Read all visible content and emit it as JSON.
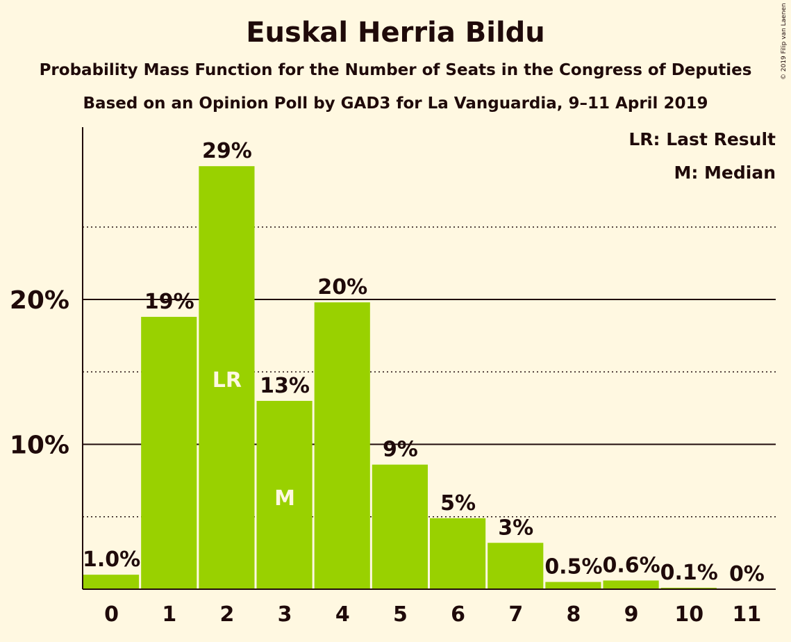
{
  "title": "Euskal Herria Bildu",
  "subtitle": "Probability Mass Function for the Number of Seats in the Congress of Deputies",
  "subtitle2": "Based on an Opinion Poll by GAD3 for La Vanguardia, 9–11 April 2019",
  "copyright": "© 2019 Filip van Laenen",
  "legend": {
    "lr": "LR: Last Result",
    "m": "M: Median"
  },
  "colors": {
    "bar": "#99d100",
    "background": "#fff8e1",
    "text": "#1f0a0a",
    "marker_text": "#fff8e1"
  },
  "chart_data": {
    "type": "bar",
    "categories": [
      "0",
      "1",
      "2",
      "3",
      "4",
      "5",
      "6",
      "7",
      "8",
      "9",
      "10",
      "11"
    ],
    "values": [
      1.0,
      18.8,
      29.2,
      13.0,
      19.8,
      8.6,
      4.9,
      3.2,
      0.5,
      0.6,
      0.1,
      0
    ],
    "data_labels": [
      "1.0%",
      "19%",
      "29%",
      "13%",
      "20%",
      "9%",
      "5%",
      "3%",
      "0.5%",
      "0.6%",
      "0.1%",
      "0%"
    ],
    "ylim": [
      0,
      32
    ],
    "yticks": [
      {
        "value": 10,
        "label": "10%"
      },
      {
        "value": 20,
        "label": "20%"
      }
    ],
    "minor_gridlines": [
      5,
      15,
      25
    ],
    "markers": [
      {
        "index": 2,
        "label": "LR"
      },
      {
        "index": 3,
        "label": "M"
      }
    ],
    "legend_position": "top-right"
  }
}
